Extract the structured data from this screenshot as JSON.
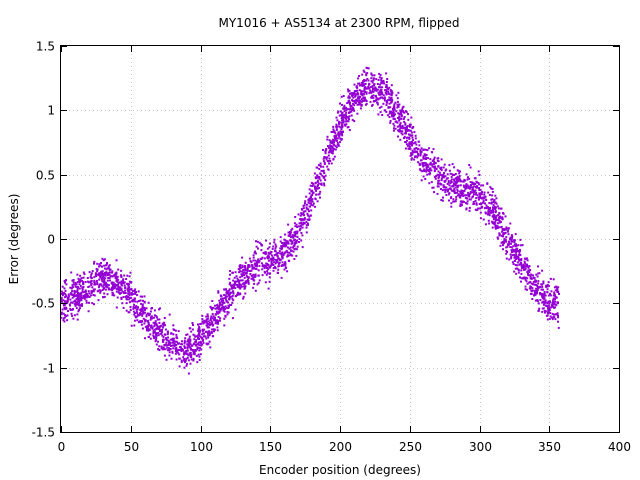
{
  "chart_data": {
    "type": "scatter",
    "title": "MY1016 + AS5134 at 2300 RPM, flipped",
    "xlabel": "Encoder position (degrees)",
    "ylabel": "Error (degrees)",
    "xlim": [
      0,
      400
    ],
    "ylim": [
      -1.5,
      1.5
    ],
    "x_ticks": [
      0,
      50,
      100,
      150,
      200,
      250,
      300,
      350,
      400
    ],
    "y_ticks": [
      -1.5,
      -1,
      -0.5,
      0,
      0.5,
      1,
      1.5
    ],
    "x_tick_labels": [
      "0",
      "50",
      "100",
      "150",
      "200",
      "250",
      "300",
      "350",
      "400"
    ],
    "y_tick_labels": [
      "-1.5",
      "-1",
      "-0.5",
      "0",
      "0.5",
      "1",
      "1.5"
    ],
    "grid": true,
    "color": "#9400d3",
    "series": [
      {
        "trend_x": [
          0,
          10,
          20,
          30,
          40,
          50,
          60,
          70,
          80,
          90,
          100,
          110,
          120,
          130,
          140,
          150,
          160,
          170,
          180,
          190,
          200,
          210,
          220,
          230,
          240,
          250,
          260,
          270,
          280,
          290,
          300,
          310,
          320,
          330,
          340,
          350,
          357
        ],
        "trend_y": [
          -0.5,
          -0.45,
          -0.38,
          -0.3,
          -0.32,
          -0.45,
          -0.62,
          -0.72,
          -0.82,
          -0.86,
          -0.78,
          -0.62,
          -0.45,
          -0.3,
          -0.2,
          -0.18,
          -0.12,
          0.05,
          0.3,
          0.6,
          0.88,
          1.08,
          1.18,
          1.15,
          1.0,
          0.78,
          0.6,
          0.5,
          0.42,
          0.38,
          0.35,
          0.2,
          0.0,
          -0.2,
          -0.38,
          -0.5,
          -0.52
        ],
        "noise_halfwidth": 0.12,
        "point_count": 3500
      }
    ]
  }
}
